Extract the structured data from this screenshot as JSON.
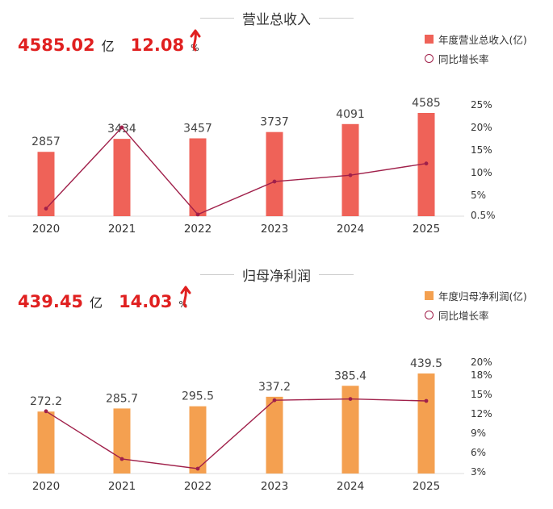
{
  "colors": {
    "revenue_bar": "#ef6258",
    "profit_bar": "#f4a050",
    "line": "#a0204a",
    "highlight": "#e02020"
  },
  "chart_data": [
    {
      "type": "bar",
      "title": "营业总收入",
      "summary": {
        "value": "4585.02",
        "unit": "亿",
        "growth": "12.08",
        "growth_unit": "%"
      },
      "categories": [
        "2020",
        "2021",
        "2022",
        "2023",
        "2024",
        "2025"
      ],
      "series": [
        {
          "name": "年度营业总收入(亿)",
          "kind": "bar",
          "axis": "left",
          "values": [
            2857,
            3434,
            3457,
            3737,
            4091,
            4585
          ],
          "labels": [
            "2857",
            "3434",
            "3457",
            "3737",
            "4091",
            "4585"
          ]
        },
        {
          "name": "同比增长率",
          "kind": "line",
          "axis": "right",
          "values": [
            2.0,
            20.0,
            0.7,
            8.0,
            9.4,
            12.0
          ]
        }
      ],
      "ylim_left": [
        0,
        5000
      ],
      "yticks_right": [
        {
          "label": "25%",
          "value": 25
        },
        {
          "label": "20%",
          "value": 20
        },
        {
          "label": "15%",
          "value": 15
        },
        {
          "label": "10%",
          "value": 10
        },
        {
          "label": "5%",
          "value": 5
        },
        {
          "label": "0.5%",
          "value": 0.5
        }
      ]
    },
    {
      "type": "bar",
      "title": "归母净利润",
      "summary": {
        "value": "439.45",
        "unit": "亿",
        "growth": "14.03",
        "growth_unit": "%"
      },
      "categories": [
        "2020",
        "2021",
        "2022",
        "2023",
        "2024",
        "2025"
      ],
      "series": [
        {
          "name": "年度归母净利润(亿)",
          "kind": "bar",
          "axis": "left",
          "values": [
            272.2,
            285.7,
            295.5,
            337.2,
            385.4,
            439.5
          ],
          "labels": [
            "272.2",
            "285.7",
            "295.5",
            "337.2",
            "385.4",
            "439.5"
          ]
        },
        {
          "name": "同比增长率",
          "kind": "line",
          "axis": "right",
          "values": [
            12.4,
            5.0,
            3.5,
            14.1,
            14.3,
            14.0
          ]
        }
      ],
      "ylim_left": [
        0,
        500
      ],
      "yticks_right": [
        {
          "label": "20%",
          "value": 20
        },
        {
          "label": "18%",
          "value": 18
        },
        {
          "label": "15%",
          "value": 15
        },
        {
          "label": "12%",
          "value": 12
        },
        {
          "label": "9%",
          "value": 9
        },
        {
          "label": "6%",
          "value": 6
        },
        {
          "label": "3%",
          "value": 3
        }
      ]
    }
  ]
}
